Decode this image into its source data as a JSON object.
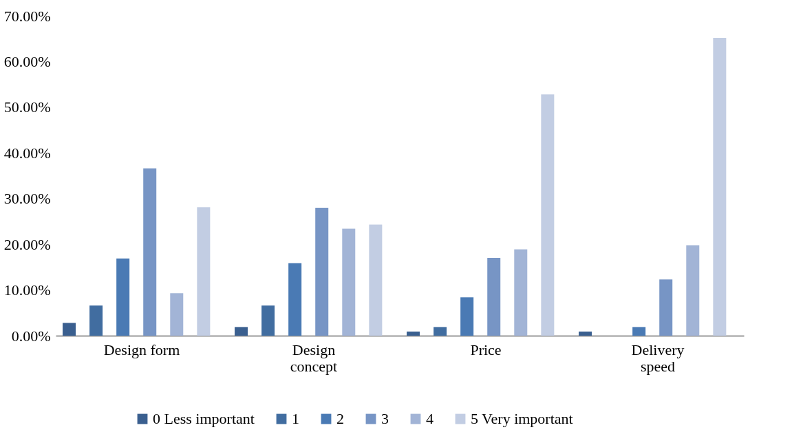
{
  "chart_data": {
    "type": "bar",
    "categories": [
      "Design form",
      "Design concept",
      "Price",
      "Delivery speed"
    ],
    "series": [
      {
        "name": "0 Less important",
        "color": "#3a5f8f",
        "values": [
          2.8,
          1.9,
          0.9,
          0.9
        ]
      },
      {
        "name": "1",
        "color": "#416da0",
        "values": [
          6.6,
          6.6,
          1.9,
          0
        ]
      },
      {
        "name": "2",
        "color": "#4a7ab4",
        "values": [
          16.9,
          15.9,
          8.4,
          1.9
        ]
      },
      {
        "name": "3",
        "color": "#7795c5",
        "values": [
          36.6,
          28.0,
          17.0,
          12.3
        ]
      },
      {
        "name": "4",
        "color": "#a2b4d6",
        "values": [
          9.3,
          23.4,
          18.9,
          19.8
        ]
      },
      {
        "name": "5 Very important",
        "color": "#c2cde3",
        "values": [
          28.1,
          24.3,
          52.8,
          65.2
        ]
      }
    ],
    "ylim": [
      0,
      70
    ],
    "yticks": [
      {
        "value": 0,
        "label": "0.00%"
      },
      {
        "value": 10,
        "label": "10.00%"
      },
      {
        "value": 20,
        "label": "20.00%"
      },
      {
        "value": 30,
        "label": "30.00%"
      },
      {
        "value": 40,
        "label": "40.00%"
      },
      {
        "value": 50,
        "label": "50.00%"
      },
      {
        "value": 60,
        "label": "60.00%"
      },
      {
        "value": 70,
        "label": "70.00%"
      }
    ],
    "grid": false,
    "legend": "bottom"
  }
}
